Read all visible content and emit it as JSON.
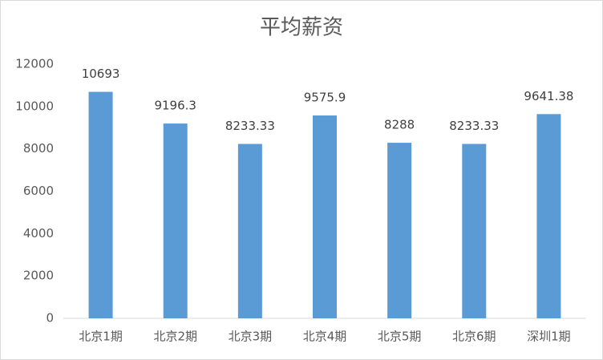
{
  "chart_data": {
    "type": "bar",
    "title": "平均薪资",
    "categories": [
      "北京1期",
      "北京2期",
      "北京3期",
      "北京4期",
      "北京5期",
      "北京6期",
      "深圳1期"
    ],
    "values": [
      10693,
      9196.3,
      8233.33,
      9575.9,
      8288,
      8233.33,
      9641.38
    ],
    "color": "#5b9bd5",
    "ylim": [
      0,
      12000
    ],
    "yticks": [
      0,
      2000,
      4000,
      6000,
      8000,
      10000,
      12000
    ],
    "grid": false
  }
}
